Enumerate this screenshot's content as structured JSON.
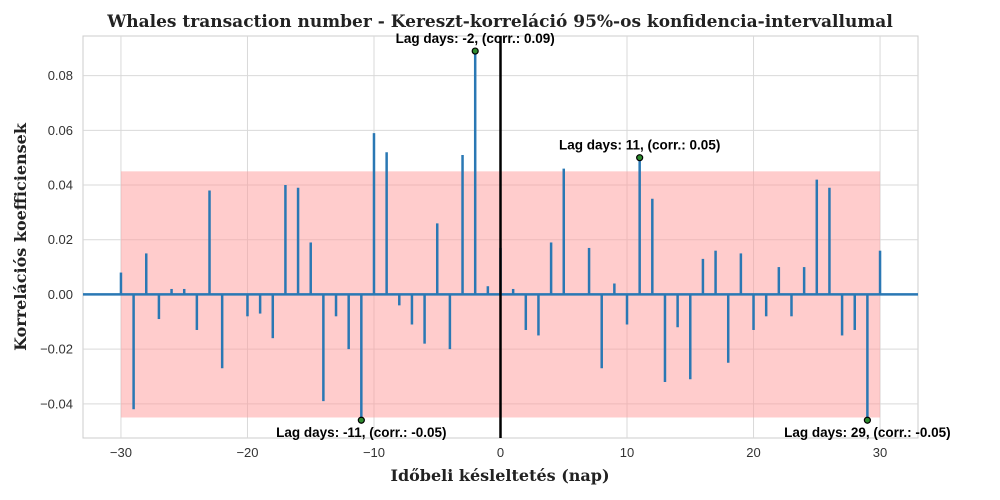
{
  "chart_data": {
    "type": "stem",
    "title": "Whales transaction number - Kereszt-korreláció 95%-os konfidencia-intervallumal",
    "xlabel": "Időbeli késleltetés (nap)",
    "ylabel": "Korrelációs koefficiensek",
    "xlim": [
      -33,
      33
    ],
    "ylim": [
      -0.0525,
      0.0945
    ],
    "xticks": [
      -30,
      -20,
      -10,
      0,
      10,
      20,
      30
    ],
    "yticks": [
      -0.04,
      -0.02,
      0.0,
      0.02,
      0.04,
      0.06,
      0.08
    ],
    "xtick_labels": [
      "−30",
      "−20",
      "−10",
      "0",
      "10",
      "20",
      "30"
    ],
    "ytick_labels": [
      "−0.04",
      "−0.02",
      "0.00",
      "0.02",
      "0.04",
      "0.06",
      "0.08"
    ],
    "grid": true,
    "confidence_band": {
      "x": [
        -30,
        30
      ],
      "y": [
        -0.045,
        0.045
      ],
      "color": "#ff9999"
    },
    "colors": {
      "stem": "#2a78b4",
      "zero_line": "#000000",
      "marker_fill": "#2e8b2e"
    },
    "x": [
      -30,
      -29,
      -28,
      -27,
      -26,
      -25,
      -24,
      -23,
      -22,
      -21,
      -20,
      -19,
      -18,
      -17,
      -16,
      -15,
      -14,
      -13,
      -12,
      -11,
      -10,
      -9,
      -8,
      -7,
      -6,
      -5,
      -4,
      -3,
      -2,
      -1,
      0,
      1,
      2,
      3,
      4,
      5,
      6,
      7,
      8,
      9,
      10,
      11,
      12,
      13,
      14,
      15,
      16,
      17,
      18,
      19,
      20,
      21,
      22,
      23,
      24,
      25,
      26,
      27,
      28,
      29,
      30
    ],
    "values": [
      0.008,
      -0.042,
      0.015,
      -0.009,
      0.002,
      0.002,
      -0.013,
      0.038,
      -0.027,
      0.0,
      -0.008,
      -0.007,
      -0.016,
      0.04,
      0.039,
      0.019,
      -0.039,
      -0.008,
      -0.02,
      -0.046,
      0.059,
      0.052,
      -0.004,
      -0.011,
      -0.018,
      0.026,
      -0.02,
      0.051,
      0.089,
      0.003,
      0.017,
      0.002,
      -0.013,
      -0.015,
      0.019,
      0.046,
      0.0,
      0.017,
      -0.027,
      0.004,
      -0.011,
      0.05,
      0.035,
      -0.032,
      -0.012,
      -0.031,
      0.013,
      0.016,
      -0.025,
      0.015,
      -0.013,
      -0.008,
      0.01,
      -0.008,
      0.01,
      0.042,
      0.039,
      -0.015,
      -0.013,
      -0.046,
      0.016
    ],
    "annotations": [
      {
        "text": "Lag days: -2, (corr.: 0.09)",
        "x": -2,
        "y": 0.089,
        "position": "above"
      },
      {
        "text": "Lag days: 11, (corr.: 0.05)",
        "x": 11,
        "y": 0.05,
        "position": "above"
      },
      {
        "text": "Lag days: -11, (corr.: -0.05)",
        "x": -11,
        "y": -0.046,
        "position": "below"
      },
      {
        "text": "Lag days: 29, (corr.: -0.05)",
        "x": 29,
        "y": -0.046,
        "position": "below"
      }
    ]
  }
}
